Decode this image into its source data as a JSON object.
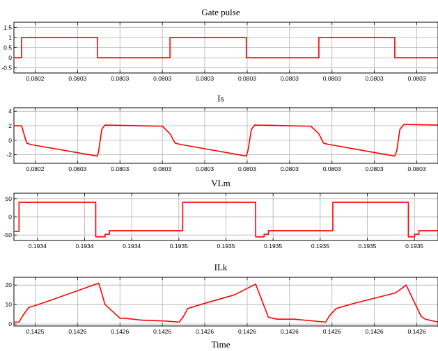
{
  "chart_data": [
    {
      "type": "line",
      "title": "Gate pulse",
      "ylim": [
        -0.75,
        1.75
      ],
      "yticks": [
        "1.5",
        "1",
        "0.5",
        "0",
        "-0.5"
      ],
      "ytick_values": [
        1.5,
        1,
        0.5,
        0,
        -0.5
      ],
      "xlim": [
        0,
        1
      ],
      "xticks": [
        "0.0802",
        "0.0803",
        "0.0803",
        "0.0803",
        "0.0803",
        "0.0803",
        "0.0803",
        "0.0803",
        "0.0803",
        "0.0803"
      ],
      "grid": true,
      "series": [
        {
          "color": "#ff0000",
          "x": [
            0,
            0.018,
            0.018,
            0.197,
            0.197,
            0.368,
            0.368,
            0.548,
            0.548,
            0.719,
            0.719,
            0.898,
            0.898,
            1.0
          ],
          "y": [
            0,
            0,
            1,
            1,
            0,
            0,
            1,
            1,
            0,
            0,
            1,
            1,
            0,
            0
          ]
        }
      ]
    },
    {
      "type": "line",
      "title": "Is",
      "ylim": [
        -3.2,
        4.5
      ],
      "yticks": [
        "4",
        "2",
        "0",
        "-2"
      ],
      "ytick_values": [
        4,
        2,
        0,
        -2
      ],
      "xlim": [
        0,
        1
      ],
      "xticks": [
        "0.0802",
        "0.0803",
        "0.0803",
        "0.0803",
        "0.0803",
        "0.0803",
        "0.0803",
        "0.0803",
        "0.0803",
        "0.0803"
      ],
      "grid": true,
      "series": [
        {
          "color": "#ff0000",
          "x": [
            0,
            0.018,
            0.03,
            0.04,
            0.197,
            0.2,
            0.207,
            0.215,
            0.3,
            0.35,
            0.368,
            0.38,
            0.39,
            0.548,
            0.552,
            0.56,
            0.568,
            0.65,
            0.7,
            0.719,
            0.73,
            0.74,
            0.898,
            0.903,
            0.91,
            0.92,
            1.0
          ],
          "y": [
            2.0,
            2.0,
            -0.4,
            -0.6,
            -2.2,
            -1.4,
            1.5,
            2.1,
            2.0,
            1.95,
            0.9,
            -0.4,
            -0.55,
            -2.2,
            -1.4,
            1.5,
            2.1,
            2.0,
            1.95,
            0.9,
            -0.4,
            -0.55,
            -2.2,
            -1.4,
            1.5,
            2.2,
            2.1
          ]
        }
      ]
    },
    {
      "type": "line",
      "title": "VLm",
      "ylim": [
        -65,
        65
      ],
      "yticks": [
        "50",
        "0",
        "-50"
      ],
      "ytick_values": [
        50,
        0,
        -50
      ],
      "xlim": [
        0,
        1
      ],
      "xticks": [
        "0.1934",
        "0.1934",
        "0.1934",
        "0.1935",
        "0.1935",
        "0.1935",
        "0.1935",
        "0.1935",
        "0.1935"
      ],
      "grid": true,
      "series": [
        {
          "color": "#ff0000",
          "x": [
            0,
            0.012,
            0.012,
            0.193,
            0.193,
            0.215,
            0.215,
            0.225,
            0.225,
            0.398,
            0.398,
            0.57,
            0.57,
            0.59,
            0.59,
            0.6,
            0.6,
            0.752,
            0.752,
            0.93,
            0.93,
            0.945,
            0.945,
            0.955,
            0.955,
            1.0
          ],
          "y": [
            -40,
            -40,
            40,
            40,
            -55,
            -55,
            -48,
            -48,
            -38,
            -38,
            40,
            40,
            -55,
            -55,
            -48,
            -48,
            -38,
            -38,
            40,
            40,
            -55,
            -55,
            -48,
            -48,
            -38,
            -38
          ]
        }
      ]
    },
    {
      "type": "line",
      "title": "ILk",
      "ylim": [
        -1,
        24
      ],
      "yticks": [
        "20",
        "10",
        "0"
      ],
      "ytick_values": [
        20,
        10,
        0
      ],
      "xlim": [
        0,
        1
      ],
      "xticks": [
        "0.1425",
        "0.1426",
        "0.1426",
        "0.1426",
        "0.1426",
        "0.1426",
        "0.1426",
        "0.1426",
        "0.1426",
        "0.1426"
      ],
      "xlabel": "Time",
      "grid": true,
      "series": [
        {
          "color": "#ff0000",
          "x": [
            0,
            0.012,
            0.02,
            0.035,
            0.05,
            0.09,
            0.2,
            0.215,
            0.25,
            0.26,
            0.3,
            0.36,
            0.39,
            0.4,
            0.41,
            0.44,
            0.52,
            0.57,
            0.6,
            0.61,
            0.62,
            0.66,
            0.71,
            0.735,
            0.745,
            0.76,
            0.8,
            0.9,
            0.925,
            0.96,
            0.97,
            1.0
          ],
          "y": [
            1.0,
            1.0,
            4.0,
            8.5,
            9.5,
            12.5,
            21.0,
            10.0,
            3.0,
            3.0,
            2.0,
            1.5,
            1.0,
            4.0,
            8.0,
            10.0,
            15.0,
            20.5,
            3.5,
            3.0,
            2.5,
            2.5,
            1.5,
            1.0,
            4.5,
            8.0,
            10.5,
            16.0,
            20.0,
            4.0,
            2.5,
            1.0
          ]
        }
      ]
    }
  ]
}
